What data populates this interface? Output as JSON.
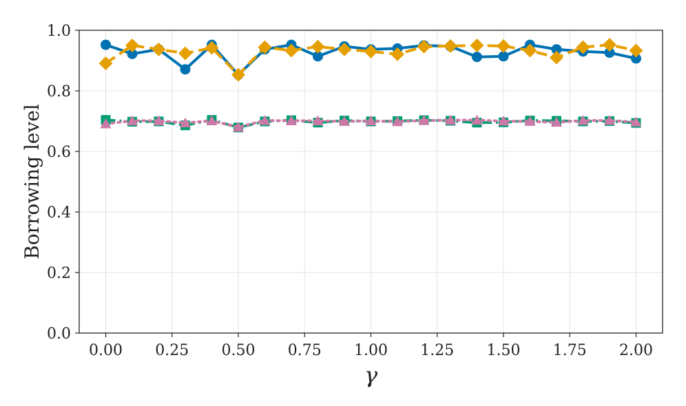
{
  "chart_data": {
    "type": "line",
    "xlabel": "γ",
    "ylabel": "Borrowing level",
    "xlim": [
      -0.1,
      2.1
    ],
    "ylim": [
      0.0,
      1.0
    ],
    "x_ticks": [
      0.0,
      0.25,
      0.5,
      0.75,
      1.0,
      1.25,
      1.5,
      1.75,
      2.0
    ],
    "x_tick_labels": [
      "0.00",
      "0.25",
      "0.50",
      "0.75",
      "1.00",
      "1.25",
      "1.50",
      "1.75",
      "2.00"
    ],
    "y_ticks": [
      0.0,
      0.2,
      0.4,
      0.6,
      0.8,
      1.0
    ],
    "y_tick_labels": [
      "0.0",
      "0.2",
      "0.4",
      "0.6",
      "0.8",
      "1.0"
    ],
    "grid": true,
    "x": [
      0.0,
      0.1,
      0.2,
      0.3,
      0.4,
      0.5,
      0.6,
      0.7,
      0.8,
      0.9,
      1.0,
      1.1,
      1.2,
      1.3,
      1.4,
      1.5,
      1.6,
      1.7,
      1.8,
      1.9,
      2.0
    ],
    "series": [
      {
        "color": "#0072B2",
        "marker": "circle",
        "line_style": "solid",
        "values": [
          0.952,
          0.922,
          0.937,
          0.871,
          0.952,
          0.853,
          0.937,
          0.952,
          0.914,
          0.947,
          0.937,
          0.94,
          0.95,
          0.947,
          0.912,
          0.914,
          0.952,
          0.937,
          0.93,
          0.926,
          0.907
        ]
      },
      {
        "color": "#E69F00",
        "marker": "diamond",
        "line_style": "dashed",
        "values": [
          0.891,
          0.95,
          0.937,
          0.924,
          0.942,
          0.853,
          0.944,
          0.933,
          0.946,
          0.937,
          0.93,
          0.921,
          0.946,
          0.948,
          0.95,
          0.948,
          0.933,
          0.91,
          0.944,
          0.952,
          0.933
        ]
      },
      {
        "color": "#009E73",
        "marker": "square",
        "line_style": "dashdot",
        "values": [
          0.704,
          0.698,
          0.699,
          0.686,
          0.704,
          0.679,
          0.699,
          0.703,
          0.695,
          0.702,
          0.699,
          0.7,
          0.703,
          0.701,
          0.695,
          0.696,
          0.702,
          0.701,
          0.699,
          0.7,
          0.694
        ]
      },
      {
        "color": "#CC79A7",
        "marker": "triangle",
        "line_style": "dotted",
        "values": [
          0.691,
          0.701,
          0.701,
          0.694,
          0.701,
          0.68,
          0.702,
          0.701,
          0.701,
          0.699,
          0.701,
          0.698,
          0.702,
          0.703,
          0.703,
          0.7,
          0.699,
          0.696,
          0.702,
          0.702,
          0.697
        ]
      }
    ]
  }
}
